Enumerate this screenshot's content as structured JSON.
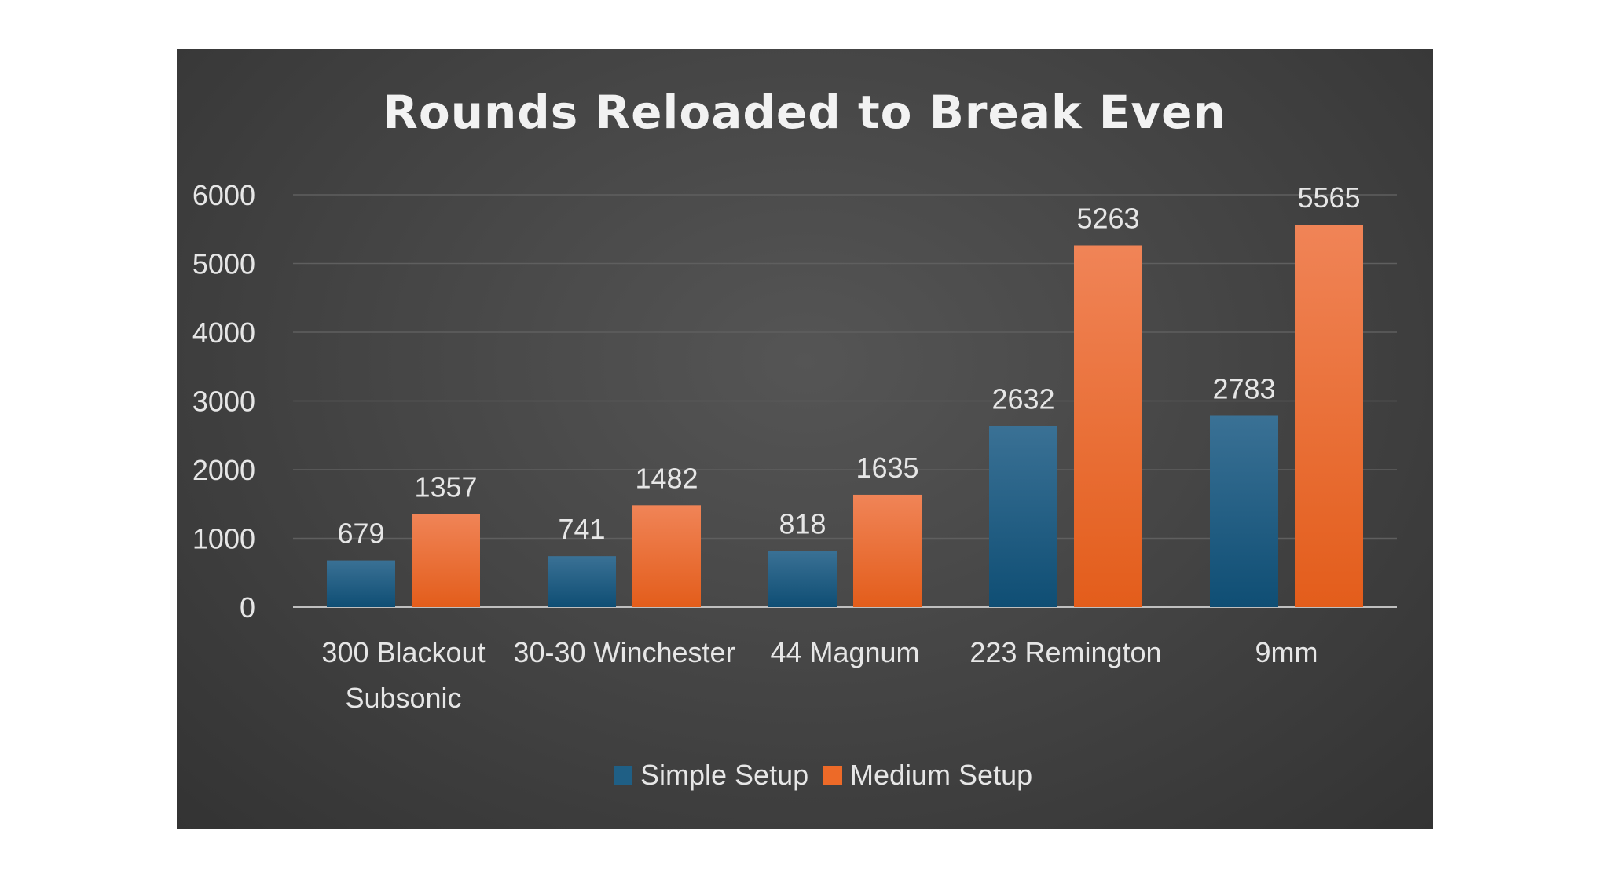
{
  "chart_data": {
    "type": "bar",
    "title": "Rounds Reloaded to Break Even",
    "categories": [
      [
        "300 Blackout",
        "Subsonic"
      ],
      [
        "30-30 Winchester"
      ],
      [
        "44 Magnum"
      ],
      [
        "223 Remington"
      ],
      [
        "9mm"
      ]
    ],
    "series": [
      {
        "name": "Simple Setup",
        "values": [
          679,
          741,
          818,
          2632,
          2783
        ],
        "color": "#1f5f85"
      },
      {
        "name": "Medium Setup",
        "values": [
          1357,
          1482,
          1635,
          5263,
          5565
        ],
        "color": "#ed6a28"
      }
    ],
    "ylim": [
      0,
      6000
    ],
    "yticks": [
      0,
      1000,
      2000,
      3000,
      4000,
      5000,
      6000
    ],
    "grid": true,
    "legend": "bottom",
    "data_labels": true,
    "background": "#454545"
  }
}
